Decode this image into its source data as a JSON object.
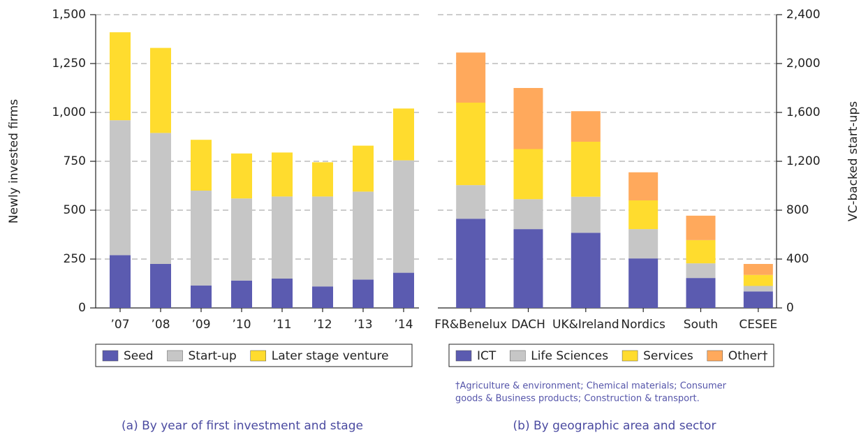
{
  "chart_data": [
    {
      "type": "bar",
      "stacked": true,
      "y_axis_side": "left",
      "grid": true,
      "ylabel": "Newly invested firms",
      "caption": "(a) By year of first investment and stage",
      "categories": [
        "’07",
        "’08",
        "’09",
        "’10",
        "’11",
        "’12",
        "’13",
        "’14"
      ],
      "ylim": [
        0,
        1500
      ],
      "yticks": [
        0,
        250,
        500,
        750,
        {
          "value": 1000,
          "label": "1,000"
        },
        {
          "value": 1250,
          "label": "1,250"
        },
        {
          "value": 1500,
          "label": "1,500"
        }
      ],
      "series": [
        {
          "name": "Seed",
          "color": "#5b5bb0",
          "values": [
            270,
            225,
            115,
            140,
            150,
            110,
            145,
            180
          ]
        },
        {
          "name": "Start-up",
          "color": "#c6c6c6",
          "values": [
            690,
            670,
            485,
            420,
            420,
            460,
            450,
            575
          ]
        },
        {
          "name": "Later stage venture",
          "color": "#ffdc2e",
          "values": [
            450,
            435,
            260,
            230,
            225,
            175,
            235,
            265
          ]
        }
      ]
    },
    {
      "type": "bar",
      "stacked": true,
      "y_axis_side": "right",
      "grid": true,
      "ylabel": "VC-backed start-ups",
      "caption": "(b) By geographic area and sector",
      "footnote": [
        "†Agriculture & environment; Chemical materials; Consumer",
        "goods & Business products; Construction & transport."
      ],
      "categories": [
        "FR&Benelux",
        "DACH",
        "UK&Ireland",
        "Nordics",
        "South",
        "CESEE"
      ],
      "ylim": [
        0,
        2400
      ],
      "yticks": [
        0,
        400,
        800,
        {
          "value": 1200,
          "label": "1,200"
        },
        {
          "value": 1600,
          "label": "1,600"
        },
        {
          "value": 2000,
          "label": "2,000"
        },
        {
          "value": 2400,
          "label": "2,400"
        }
      ],
      "series": [
        {
          "name": "ICT",
          "color": "#5b5bb0",
          "values": [
            730,
            645,
            615,
            405,
            245,
            135
          ]
        },
        {
          "name": "Life Sciences",
          "color": "#c6c6c6",
          "values": [
            275,
            245,
            295,
            240,
            120,
            45
          ]
        },
        {
          "name": "Services",
          "color": "#ffdc2e",
          "values": [
            675,
            410,
            450,
            235,
            190,
            90
          ]
        },
        {
          "name": "Other†",
          "color": "#ffa95c",
          "values": [
            410,
            500,
            250,
            230,
            200,
            90
          ]
        }
      ]
    }
  ]
}
